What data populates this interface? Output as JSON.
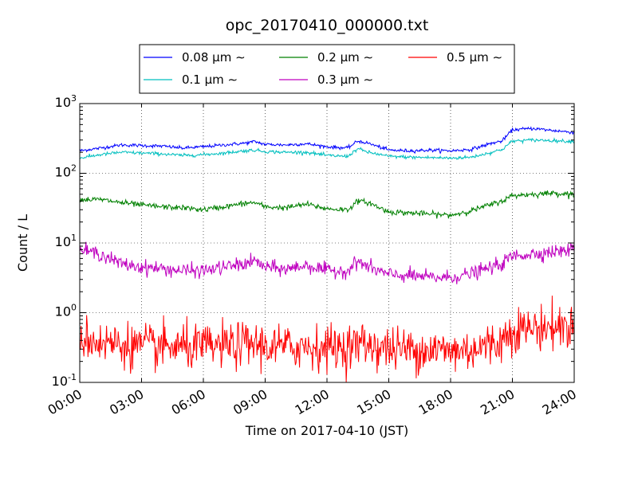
{
  "chart_data": {
    "type": "line",
    "title": "opc_20170410_000000.txt",
    "xlabel": "Time on 2017-04-10 (JST)",
    "ylabel": "Count / L",
    "yscale": "log",
    "ylim": [
      0.1,
      1000
    ],
    "xlim": [
      "2017-04-10 00:00",
      "2017-04-11 00:00"
    ],
    "grid": true,
    "legend_position": "top-center",
    "legend_columns": 3,
    "x_ticks": [
      "00:00",
      "03:00",
      "06:00",
      "09:00",
      "12:00",
      "15:00",
      "18:00",
      "21:00",
      "24:00"
    ],
    "y_ticks": [
      {
        "base": "10",
        "exp": "-1",
        "value": 0.1
      },
      {
        "base": "10",
        "exp": "0",
        "value": 1
      },
      {
        "base": "10",
        "exp": "1",
        "value": 10
      },
      {
        "base": "10",
        "exp": "2",
        "value": 100
      },
      {
        "base": "10",
        "exp": "3",
        "value": 1000
      }
    ],
    "x_times": [
      "00:00",
      "01:00",
      "02:00",
      "03:00",
      "04:00",
      "05:00",
      "06:00",
      "07:00",
      "08:00",
      "08:30",
      "09:00",
      "10:00",
      "11:00",
      "12:00",
      "13:00",
      "13:30",
      "14:00",
      "15:00",
      "16:00",
      "17:00",
      "18:00",
      "19:00",
      "20:00",
      "20:30",
      "21:00",
      "22:00",
      "23:00",
      "24:00"
    ],
    "series": [
      {
        "name": "0.08 μm ∼",
        "color": "#0000ff",
        "noise": 0.012,
        "values": [
          210,
          230,
          255,
          250,
          245,
          230,
          240,
          255,
          270,
          285,
          260,
          255,
          265,
          240,
          230,
          290,
          270,
          215,
          210,
          215,
          210,
          220,
          270,
          290,
          420,
          440,
          410,
          385
        ]
      },
      {
        "name": "0.1 μm ∼",
        "color": "#00bfbf",
        "noise": 0.012,
        "values": [
          165,
          185,
          200,
          195,
          190,
          180,
          185,
          195,
          210,
          215,
          205,
          200,
          200,
          180,
          175,
          225,
          200,
          175,
          170,
          168,
          165,
          170,
          200,
          220,
          290,
          300,
          295,
          285
        ]
      },
      {
        "name": "0.2 μm ∼",
        "color": "#008000",
        "noise": 0.02,
        "values": [
          42,
          42,
          38,
          35,
          33,
          32,
          30,
          33,
          37,
          38,
          33,
          32,
          36,
          31,
          30,
          40,
          38,
          28,
          27,
          26,
          25,
          29,
          36,
          40,
          48,
          50,
          52,
          50
        ]
      },
      {
        "name": "0.3 μm ∼",
        "color": "#bf00bf",
        "noise": 0.05,
        "values": [
          8,
          7,
          5,
          4.5,
          4.3,
          4,
          4,
          4.5,
          5,
          5.5,
          4.5,
          4.2,
          4.8,
          4,
          4,
          5.5,
          4.5,
          3.5,
          3.4,
          3.2,
          3.2,
          3.6,
          4.5,
          5,
          6.5,
          7,
          7.5,
          8
        ]
      },
      {
        "name": "0.5 μm ∼",
        "color": "#ff0000",
        "noise": 0.16,
        "values": [
          0.45,
          0.38,
          0.35,
          0.33,
          0.32,
          0.32,
          0.32,
          0.33,
          0.35,
          0.36,
          0.33,
          0.32,
          0.33,
          0.32,
          0.32,
          0.36,
          0.35,
          0.3,
          0.3,
          0.3,
          0.28,
          0.3,
          0.35,
          0.4,
          0.58,
          0.6,
          0.62,
          0.63
        ]
      }
    ]
  }
}
